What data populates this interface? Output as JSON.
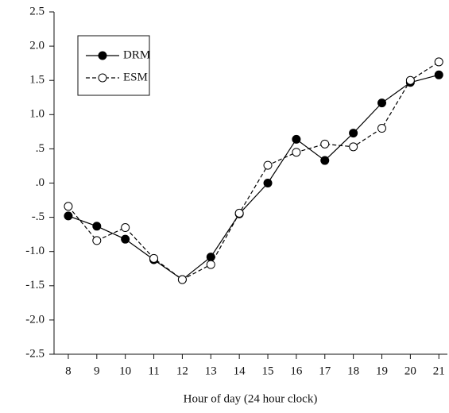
{
  "chart_data": {
    "type": "line",
    "x_label": "Hour of day (24 hour clock)",
    "x": [
      8,
      9,
      10,
      11,
      12,
      13,
      14,
      15,
      16,
      17,
      18,
      19,
      20,
      21
    ],
    "series": [
      {
        "name": "DRM",
        "color": "#000000",
        "marker": "filled",
        "dashed": false,
        "values": [
          -0.48,
          -0.63,
          -0.82,
          -1.12,
          -1.41,
          -1.08,
          -0.45,
          0.0,
          0.64,
          0.33,
          0.73,
          1.17,
          1.47,
          1.58
        ]
      },
      {
        "name": "ESM",
        "color": "#000000",
        "marker": "open",
        "dashed": true,
        "values": [
          -0.34,
          -0.84,
          -0.65,
          -1.1,
          -1.41,
          -1.19,
          -0.44,
          0.26,
          0.45,
          0.57,
          0.53,
          0.8,
          1.5,
          1.77
        ]
      }
    ],
    "xlim": [
      7.5,
      21.3
    ],
    "xticks": [
      8,
      9,
      10,
      11,
      12,
      13,
      14,
      15,
      16,
      17,
      18,
      19,
      20,
      21
    ],
    "ylim": [
      -2.5,
      2.5
    ],
    "yticks": [
      2.5,
      {
        "value": 2,
        "label": "2.0"
      },
      1.5,
      {
        "value": 1,
        "label": "1.0"
      },
      {
        "value": 0.5,
        "label": ".5"
      },
      {
        "value": 0,
        "label": ".0"
      },
      {
        "value": -0.5,
        "label": "-.5"
      },
      {
        "value": -1,
        "label": "-1.0"
      },
      -1.5,
      {
        "value": -2,
        "label": "-2.0"
      },
      -2.5
    ],
    "legend": "upper left",
    "grid": false
  }
}
